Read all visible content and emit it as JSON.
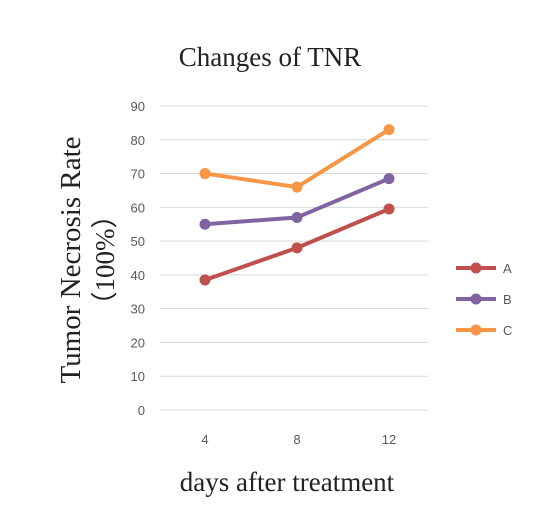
{
  "chart_data": {
    "type": "line",
    "title": "Changes of TNR",
    "xlabel": "days after treatment",
    "ylabel": "Tumor Necrosis Rate",
    "ylabel_unit": "（100%）",
    "categories": [
      "4",
      "8",
      "12"
    ],
    "ylim": [
      0,
      90
    ],
    "yticks": [
      0,
      10,
      20,
      30,
      40,
      50,
      60,
      70,
      80,
      90
    ],
    "grid": true,
    "legend_position": "right",
    "series": [
      {
        "name": "A",
        "values": [
          38.5,
          48,
          59.5
        ],
        "color": "#c0504d"
      },
      {
        "name": "B",
        "values": [
          55,
          57,
          68.5
        ],
        "color": "#8064a2"
      },
      {
        "name": "C",
        "values": [
          70,
          66,
          83
        ],
        "color": "#f79646"
      }
    ]
  }
}
